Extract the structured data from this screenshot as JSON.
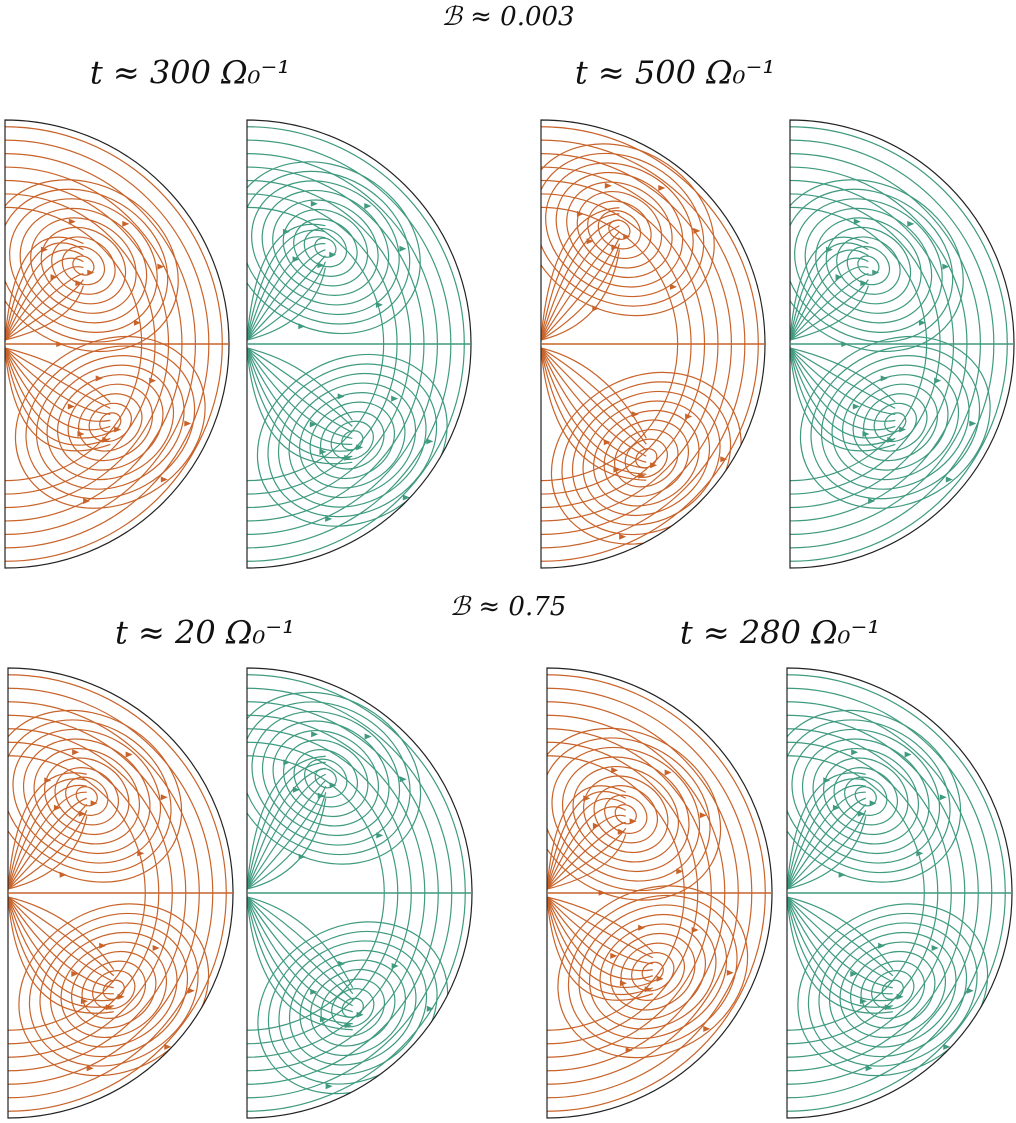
{
  "figure": {
    "groups": [
      {
        "label": "ℬ ≈ 0.003",
        "panels": [
          {
            "time": "t ≈ 300 Ω₀⁻¹"
          },
          {
            "time": "t ≈ 500 Ω₀⁻¹"
          }
        ]
      },
      {
        "label": "ℬ ≈ 0.75",
        "panels": [
          {
            "time": "t ≈ 20 Ω₀⁻¹"
          },
          {
            "time": "t ≈ 280 Ω₀⁻¹"
          }
        ]
      }
    ]
  }
}
